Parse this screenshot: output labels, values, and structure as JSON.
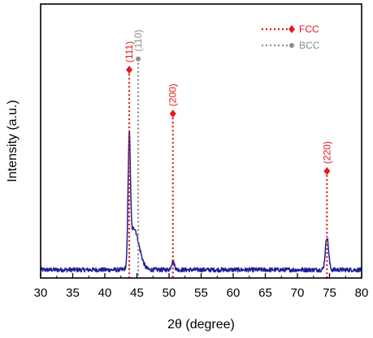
{
  "chart_data": {
    "type": "line",
    "title": "",
    "xlabel": "2θ (degree)",
    "ylabel": "Intensity (a.u.)",
    "xlim": [
      30,
      80
    ],
    "xticks": [
      30,
      35,
      40,
      45,
      50,
      55,
      60,
      65,
      70,
      75,
      80
    ],
    "xtick_labels": [
      "30",
      "35",
      "40",
      "45",
      "50",
      "55",
      "60",
      "65",
      "70",
      "75",
      "80"
    ],
    "yticks_shown": false,
    "grid": false,
    "legend_position": "top-right",
    "colors": {
      "pattern": "#1f1f99",
      "fcc": "#e41a1c",
      "bcc": "#8c8c8c"
    },
    "series": [
      {
        "type": "xrd_pattern",
        "baseline": 0.03,
        "noise": 0.008,
        "peaks": [
          {
            "x": 43.8,
            "height": 0.44,
            "width": 0.18
          },
          {
            "x": 44.4,
            "height": 0.12,
            "width": 0.5
          },
          {
            "x": 45.2,
            "height": 0.07,
            "width": 0.6
          },
          {
            "x": 50.6,
            "height": 0.03,
            "width": 0.25
          },
          {
            "x": 74.6,
            "height": 0.12,
            "width": 0.25
          }
        ]
      }
    ],
    "reference_lines": [
      {
        "phase": "FCC",
        "label": "(111)",
        "x": 43.8,
        "marker_y": 0.76
      },
      {
        "phase": "BCC",
        "label": "(110)",
        "x": 45.2,
        "marker_y": 0.8
      },
      {
        "phase": "FCC",
        "label": "(200)",
        "x": 50.6,
        "marker_y": 0.6
      },
      {
        "phase": "FCC",
        "label": "(220)",
        "x": 74.6,
        "marker_y": 0.39
      }
    ],
    "legend": [
      {
        "label": "FCC",
        "phase": "FCC",
        "marker": "diamond"
      },
      {
        "label": "BCC",
        "phase": "BCC",
        "marker": "circle"
      }
    ]
  }
}
